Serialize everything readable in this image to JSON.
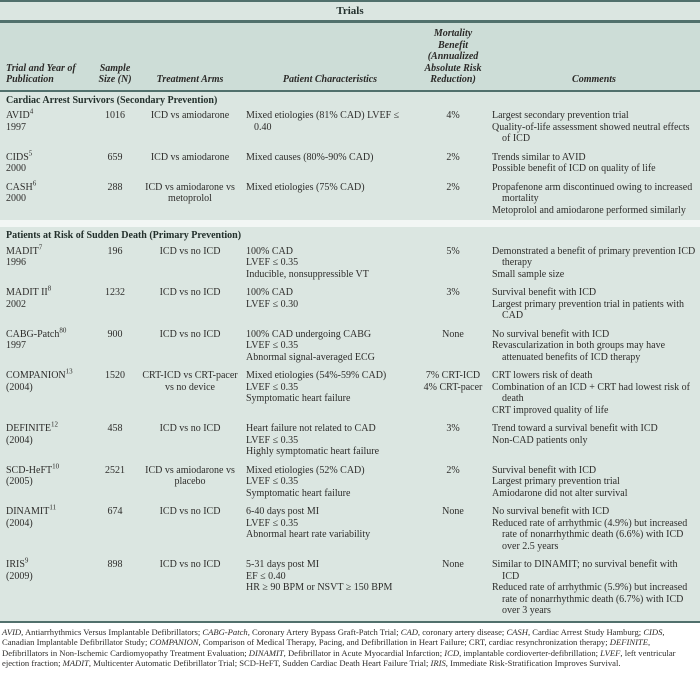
{
  "caption": "Trials",
  "columns": [
    "Trial and Year of Publication",
    "Sample Size (N)",
    "Treatment Arms",
    "Patient Characteristics",
    "Mortality Benefit (Annualized Absolute Risk Reduction)",
    "Comments"
  ],
  "colors": {
    "table_bg": "#dbe6e1",
    "header_bg": "#cdddd7",
    "rule": "#51706c",
    "text": "#2e2d2b"
  },
  "sections": [
    {
      "label": "Cardiac Arrest Survivors (Secondary Prevention)",
      "rows": [
        {
          "trial": "AVID",
          "ref": "4",
          "year": "1997",
          "n": "1016",
          "arms": "ICD vs amiodarone",
          "characteristics": [
            "Mixed etiologies (81% CAD) LVEF ≤ 0.40"
          ],
          "benefit": [
            "4%"
          ],
          "comments": [
            "Largest secondary prevention trial",
            "Quality-of-life assessment showed neutral effects of ICD"
          ]
        },
        {
          "trial": "CIDS",
          "ref": "5",
          "year": "2000",
          "n": "659",
          "arms": "ICD vs amiodarone",
          "characteristics": [
            "Mixed causes (80%-90% CAD)"
          ],
          "benefit": [
            "2%"
          ],
          "comments": [
            "Trends similar to AVID",
            "Possible benefit of ICD on quality of life"
          ]
        },
        {
          "trial": "CASH",
          "ref": "6",
          "year": "2000",
          "n": "288",
          "arms": "ICD vs amiodarone vs metoprolol",
          "characteristics": [
            "Mixed etiologies (75% CAD)"
          ],
          "benefit": [
            "2%"
          ],
          "comments": [
            "Propafenone arm discontinued owing to increased mortality",
            "Metoprolol and amiodarone performed similarly"
          ]
        }
      ]
    },
    {
      "label": "Patients at Risk of Sudden Death (Primary Prevention)",
      "rows": [
        {
          "trial": "MADIT",
          "ref": "7",
          "year": "1996",
          "n": "196",
          "arms": "ICD vs no ICD",
          "characteristics": [
            "100% CAD",
            "LVEF ≤ 0.35",
            "Inducible, nonsuppressible VT"
          ],
          "benefit": [
            "5%"
          ],
          "comments": [
            "Demonstrated a benefit of primary prevention ICD therapy",
            "Small sample size"
          ]
        },
        {
          "trial": "MADIT II",
          "ref": "8",
          "year": "2002",
          "n": "1232",
          "arms": "ICD vs no ICD",
          "characteristics": [
            "100% CAD",
            "LVEF ≤ 0.30"
          ],
          "benefit": [
            "3%"
          ],
          "comments": [
            "Survival benefit with ICD",
            "Largest primary prevention trial in patients with CAD"
          ]
        },
        {
          "trial": "CABG-Patch",
          "ref": "80",
          "year": "1997",
          "n": "900",
          "arms": "ICD vs no ICD",
          "characteristics": [
            "100% CAD undergoing CABG",
            "LVEF ≤ 0.35",
            "Abnormal signal-averaged ECG"
          ],
          "benefit": [
            "None"
          ],
          "comments": [
            "No survival benefit with ICD",
            "Revascularization in both groups may have attenuated benefits of ICD therapy"
          ]
        },
        {
          "trial": "COMPANION",
          "ref": "13",
          "year": "(2004)",
          "n": "1520",
          "arms": "CRT-ICD vs CRT-pacer vs no device",
          "characteristics": [
            "Mixed etiologies (54%-59% CAD)",
            "LVEF ≤ 0.35",
            "Symptomatic heart failure"
          ],
          "benefit": [
            "7% CRT-ICD",
            "4% CRT-pacer"
          ],
          "comments": [
            "CRT lowers risk of death",
            "Combination of an ICD + CRT had lowest risk of death",
            "CRT improved quality of life"
          ]
        },
        {
          "trial": "DEFINITE",
          "ref": "12",
          "year": "(2004)",
          "n": "458",
          "arms": "ICD vs no ICD",
          "characteristics": [
            "Heart failure not related to CAD",
            "LVEF ≤ 0.35",
            "Highly symptomatic heart failure"
          ],
          "benefit": [
            "3%"
          ],
          "comments": [
            "Trend toward a survival benefit with ICD",
            "Non-CAD patients only"
          ]
        },
        {
          "trial": "SCD-HeFT",
          "ref": "10",
          "year": "(2005)",
          "n": "2521",
          "arms": "ICD vs amiodarone vs placebo",
          "characteristics": [
            "Mixed etiologies (52% CAD)",
            "LVEF ≤ 0.35",
            "Symptomatic heart failure"
          ],
          "benefit": [
            "2%"
          ],
          "comments": [
            "Survival benefit with ICD",
            "Largest primary prevention trial",
            "Amiodarone did not alter survival"
          ]
        },
        {
          "trial": "DINAMIT",
          "ref": "11",
          "year": "(2004)",
          "n": "674",
          "arms": "ICD vs no ICD",
          "characteristics": [
            "6-40 days post MI",
            "LVEF ≤ 0.35",
            "Abnormal heart rate variability"
          ],
          "benefit": [
            "None"
          ],
          "comments": [
            "No survival benefit with ICD",
            "Reduced rate of arrhythmic (4.9%) but increased rate of nonarrhythmic death (6.6%) with ICD over 2.5 years"
          ]
        },
        {
          "trial": "IRIS",
          "ref": "9",
          "year": "(2009)",
          "n": "898",
          "arms": "ICD vs no ICD",
          "characteristics": [
            "5-31 days post MI",
            "EF ≤ 0.40",
            "HR ≥ 90 BPM or NSVT ≥ 150 BPM"
          ],
          "benefit": [
            "None"
          ],
          "comments": [
            "Similar to DINAMIT; no survival benefit with ICD",
            "Reduced rate of arrhythmic (5.9%) but increased rate of nonarrhythmic death (6.7%) with ICD over 3 years"
          ]
        }
      ]
    }
  ],
  "footnote_segments": [
    {
      "t": "AVID",
      "i": true
    },
    {
      "t": ", Antiarrhythmics Versus Implantable Defibrillators; ",
      "i": false
    },
    {
      "t": "CABG-Patch",
      "i": true
    },
    {
      "t": ", Coronary Artery Bypass Graft-Patch Trial; ",
      "i": false
    },
    {
      "t": "CAD",
      "i": true
    },
    {
      "t": ", coronary artery disease; ",
      "i": false
    },
    {
      "t": "CASH",
      "i": true
    },
    {
      "t": ", Cardiac Arrest Study Hamburg; ",
      "i": false
    },
    {
      "t": "CIDS",
      "i": true
    },
    {
      "t": ", Canadian Implantable Defibrillator Study; ",
      "i": false
    },
    {
      "t": "COMPANION",
      "i": true
    },
    {
      "t": ", Comparison of Medical Therapy, Pacing, and Defibrillation in Heart Failure; CRT, cardiac resynchronization therapy; ",
      "i": false
    },
    {
      "t": "DEFINITE",
      "i": true
    },
    {
      "t": ", Defibrillators in Non-Ischemic Cardiomyopathy Treatment Evaluation; ",
      "i": false
    },
    {
      "t": "DINAMIT",
      "i": true
    },
    {
      "t": ", Defibrillator in Acute Myocardial Infarction; ",
      "i": false
    },
    {
      "t": "ICD",
      "i": true
    },
    {
      "t": ", implantable cordioverter-defibrillation; ",
      "i": false
    },
    {
      "t": "LVEF",
      "i": true
    },
    {
      "t": ", left ventricular ejection fraction; ",
      "i": false
    },
    {
      "t": "MADIT",
      "i": true
    },
    {
      "t": ", Multicenter Automatic Defibrillator Trial; SCD-HeFT, Sudden Cardiac Death Heart Failure Trial; ",
      "i": false
    },
    {
      "t": "IRIS",
      "i": true
    },
    {
      "t": ", Immediate Risk-Stratification Improves Survival.",
      "i": false
    }
  ]
}
